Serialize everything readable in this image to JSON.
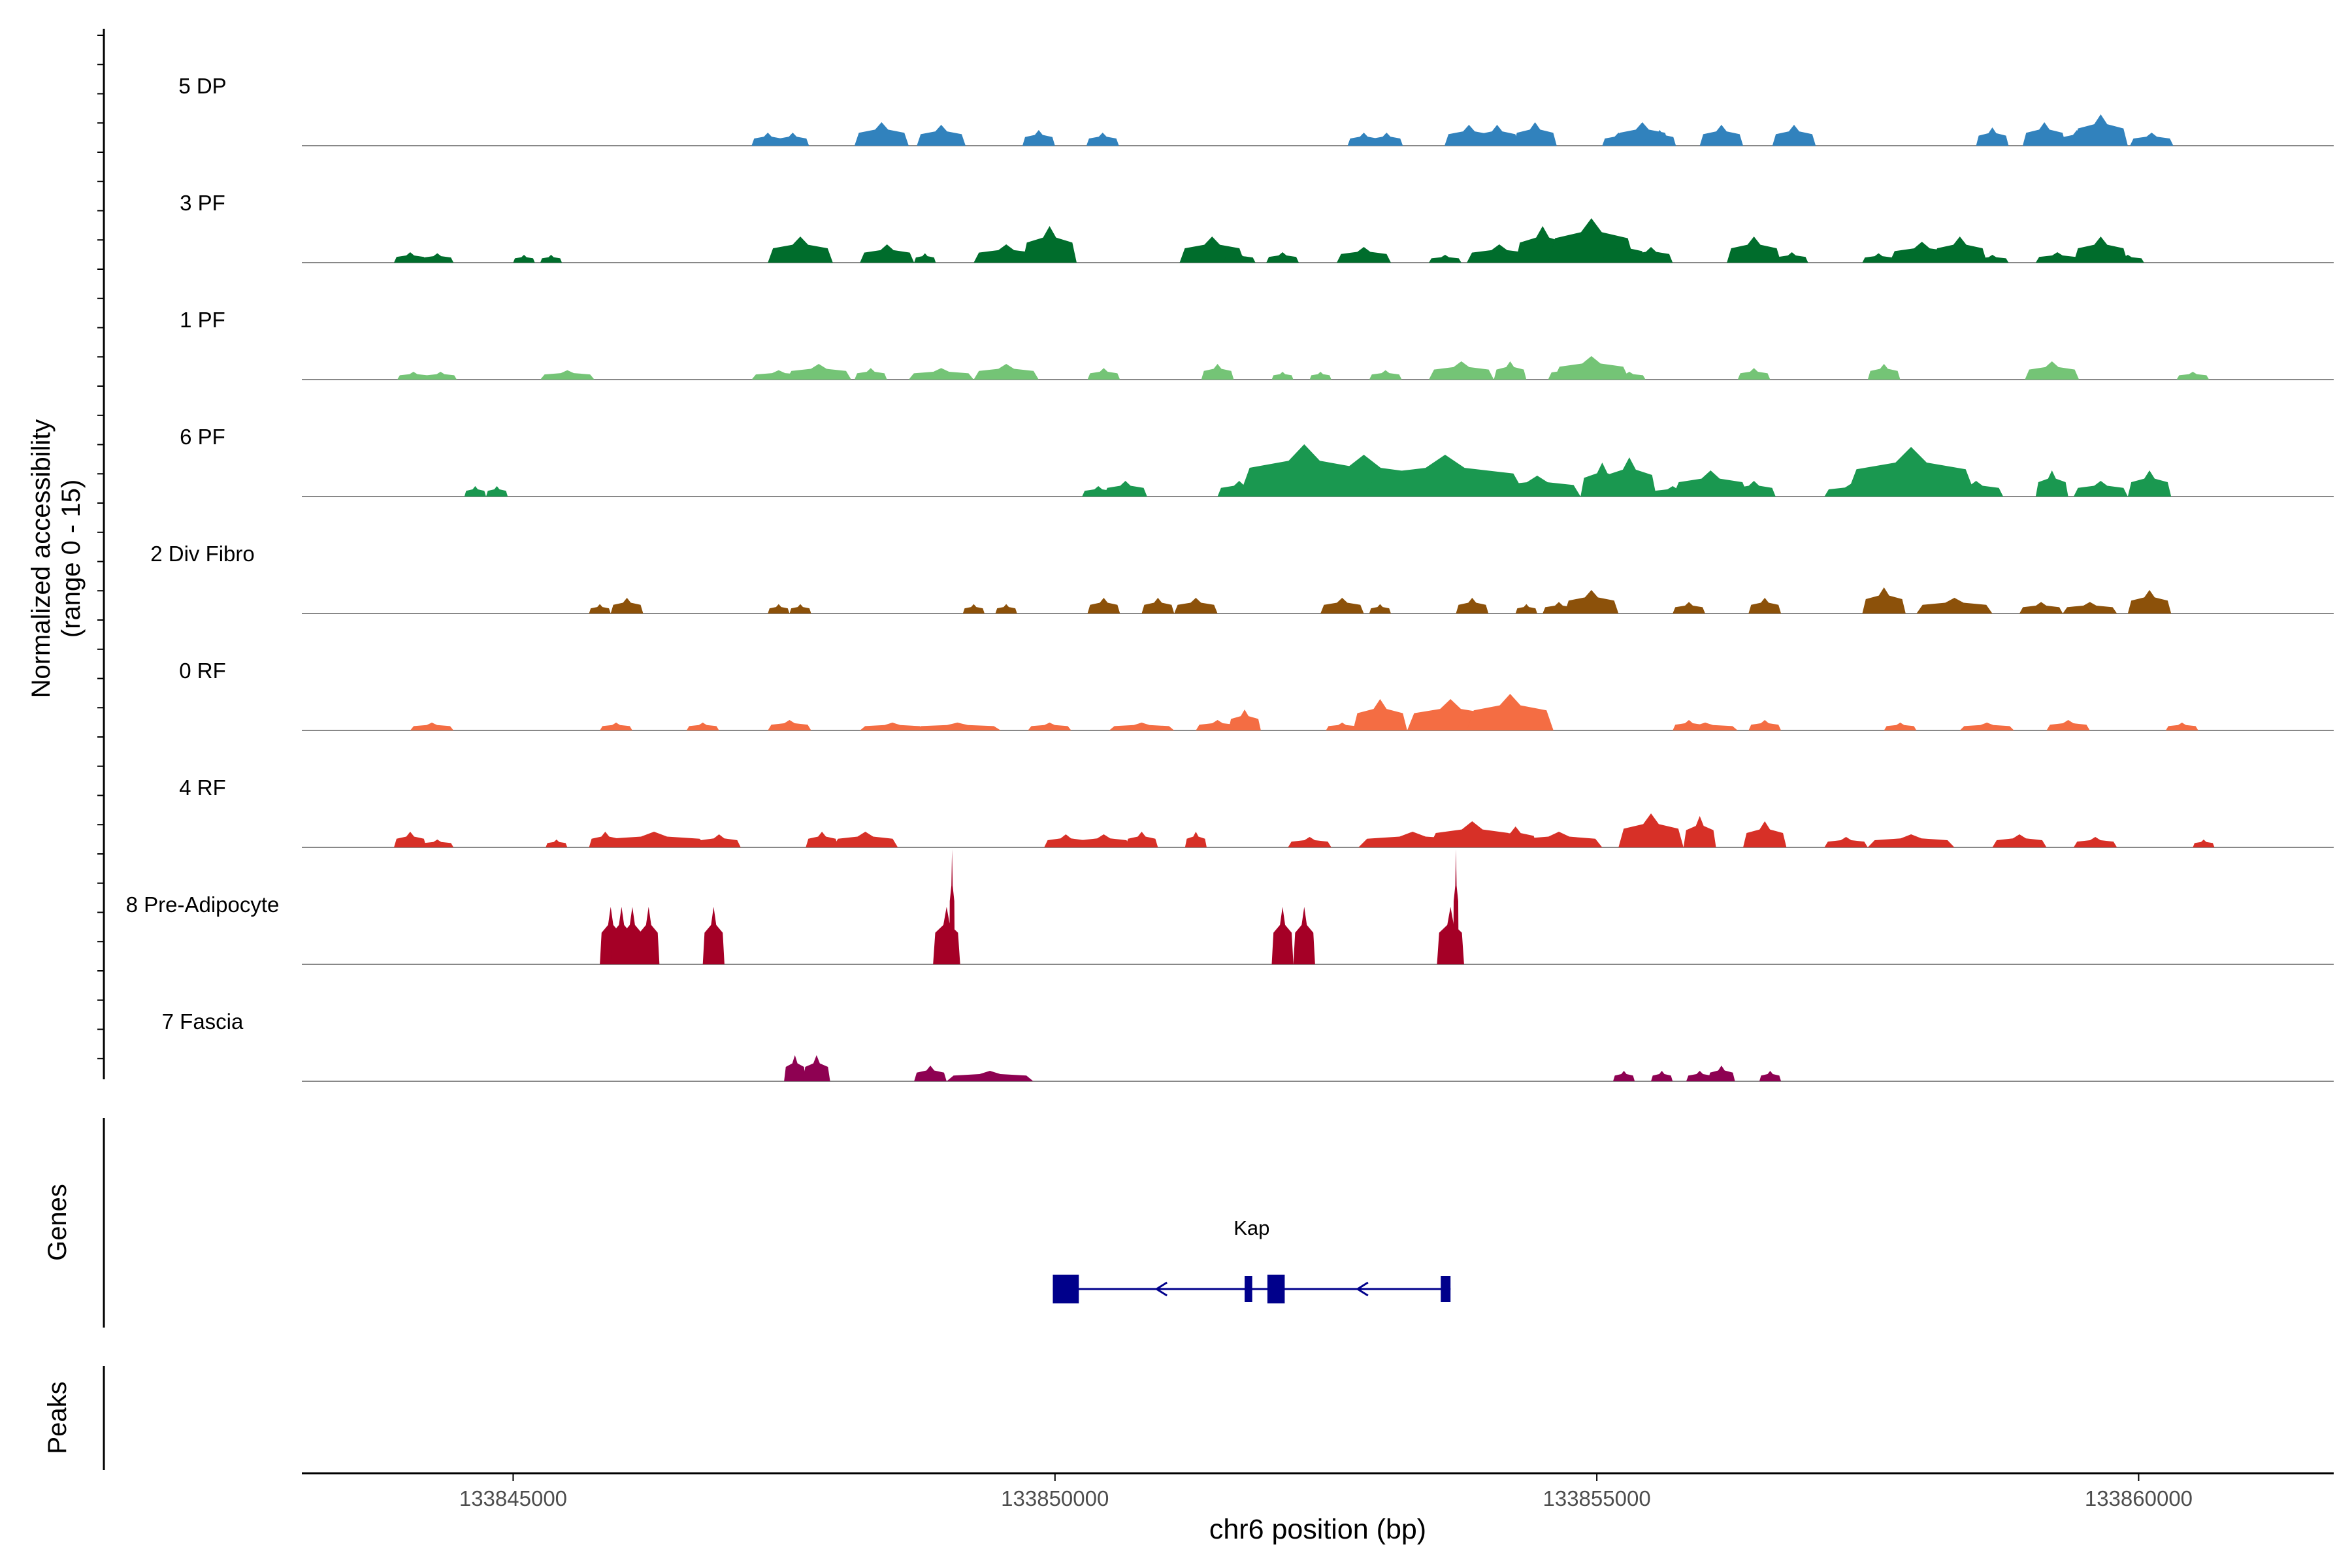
{
  "chart_data": {
    "type": "area",
    "subtype": "coverage-track",
    "x_axis": {
      "label": "chr6 position (bp)",
      "range": [
        133843050,
        133861800
      ],
      "ticks": [
        133845000,
        133850000,
        133855000,
        133860000
      ],
      "tick_labels": [
        "133845000",
        "133850000",
        "133855000",
        "133860000"
      ]
    },
    "y_axis": {
      "label_line1": "Normalized accessibility",
      "label_line2": "(range 0 - 15)",
      "range": [
        0,
        15
      ]
    },
    "series": [
      {
        "name": "5 DP",
        "color": "#3182BD",
        "peaks": [
          [
            133847350,
            0.3,
            2.5
          ],
          [
            133847580,
            0.3,
            2.5
          ],
          [
            133848400,
            0.5,
            4.5
          ],
          [
            133848950,
            0.45,
            4
          ],
          [
            133849850,
            0.3,
            3
          ],
          [
            133850440,
            0.3,
            2.5
          ],
          [
            133852850,
            0.3,
            2.5
          ],
          [
            133853060,
            0.3,
            2.5
          ],
          [
            133853820,
            0.45,
            4
          ],
          [
            133854080,
            0.4,
            4
          ],
          [
            133854430,
            0.4,
            4.5
          ],
          [
            133855200,
            0.3,
            2.5
          ],
          [
            133855420,
            0.5,
            4.5
          ],
          [
            133855580,
            0.3,
            3
          ],
          [
            133856150,
            0.4,
            4
          ],
          [
            133856820,
            0.4,
            4
          ],
          [
            133858650,
            0.3,
            3.5
          ],
          [
            133859130,
            0.4,
            4.5
          ],
          [
            133859430,
            0.3,
            3
          ],
          [
            133859650,
            0.5,
            6
          ],
          [
            133860120,
            0.4,
            2.5
          ]
        ]
      },
      {
        "name": "3 PF",
        "color": "#006D2C",
        "peaks": [
          [
            133844050,
            0.3,
            2
          ],
          [
            133844300,
            0.3,
            1.8
          ],
          [
            133845100,
            0.2,
            1.5
          ],
          [
            133845350,
            0.2,
            1.5
          ],
          [
            133847650,
            0.6,
            5
          ],
          [
            133848450,
            0.5,
            3.5
          ],
          [
            133848800,
            0.2,
            1.8
          ],
          [
            133849550,
            0.6,
            3.5
          ],
          [
            133849950,
            0.5,
            7
          ],
          [
            133851450,
            0.6,
            5
          ],
          [
            133851700,
            0.3,
            1.8
          ],
          [
            133852100,
            0.3,
            2
          ],
          [
            133852850,
            0.5,
            3
          ],
          [
            133853600,
            0.3,
            1.5
          ],
          [
            133854100,
            0.6,
            3.5
          ],
          [
            133854500,
            0.5,
            7
          ],
          [
            133854950,
            0.8,
            8.5
          ],
          [
            133855250,
            0.4,
            4
          ],
          [
            133855500,
            0.4,
            3
          ],
          [
            133856450,
            0.5,
            5
          ],
          [
            133856800,
            0.3,
            2
          ],
          [
            133857600,
            0.3,
            1.8
          ],
          [
            133858000,
            0.6,
            4
          ],
          [
            133858350,
            0.5,
            5
          ],
          [
            133858650,
            0.3,
            1.5
          ],
          [
            133859250,
            0.4,
            2
          ],
          [
            133859650,
            0.5,
            5
          ],
          [
            133859900,
            0.3,
            1.5
          ]
        ]
      },
      {
        "name": "1 PF",
        "color": "#74C476",
        "peaks": [
          [
            133844080,
            0.3,
            1.5
          ],
          [
            133844330,
            0.3,
            1.5
          ],
          [
            133845500,
            0.5,
            1.8
          ],
          [
            133847450,
            0.5,
            1.8
          ],
          [
            133847820,
            0.6,
            3
          ],
          [
            133848300,
            0.3,
            2.2
          ],
          [
            133848950,
            0.6,
            2.2
          ],
          [
            133849550,
            0.6,
            3
          ],
          [
            133850450,
            0.3,
            2.2
          ],
          [
            133851500,
            0.3,
            3
          ],
          [
            133852100,
            0.2,
            1.5
          ],
          [
            133852450,
            0.2,
            1.5
          ],
          [
            133853050,
            0.3,
            1.8
          ],
          [
            133853750,
            0.6,
            3.5
          ],
          [
            133854200,
            0.3,
            3.5
          ],
          [
            133854750,
            0.4,
            2.5
          ],
          [
            133854950,
            0.7,
            4.5
          ],
          [
            133855300,
            0.3,
            1.5
          ],
          [
            133856450,
            0.3,
            2.2
          ],
          [
            133857650,
            0.3,
            3
          ],
          [
            133859200,
            0.5,
            3.5
          ],
          [
            133860500,
            0.3,
            1.5
          ]
        ]
      },
      {
        "name": "6 PF",
        "color": "#1A9850",
        "peaks": [
          [
            133844650,
            0.2,
            2
          ],
          [
            133844850,
            0.2,
            2
          ],
          [
            133850400,
            0.3,
            2
          ],
          [
            133850650,
            0.4,
            3
          ],
          [
            133851700,
            0.4,
            3
          ],
          [
            133852000,
            0.4,
            4
          ],
          [
            133852300,
            1.2,
            10
          ],
          [
            133852850,
            1.3,
            8
          ],
          [
            133853600,
            1.5,
            8
          ],
          [
            133854100,
            0.3,
            2
          ],
          [
            133854450,
            0.8,
            4
          ],
          [
            133855050,
            0.4,
            6.5
          ],
          [
            133855300,
            0.5,
            7.5
          ],
          [
            133855700,
            0.4,
            2
          ],
          [
            133856050,
            0.7,
            5
          ],
          [
            133856450,
            0.4,
            3
          ],
          [
            133857350,
            0.5,
            2.5
          ],
          [
            133857900,
            1.2,
            9.5
          ],
          [
            133858500,
            0.5,
            3
          ],
          [
            133859200,
            0.3,
            5
          ],
          [
            133859650,
            0.5,
            3
          ],
          [
            133860100,
            0.4,
            5
          ]
        ]
      },
      {
        "name": "2 Div Fibro",
        "color": "#8C510A",
        "peaks": [
          [
            133845800,
            0.2,
            1.8
          ],
          [
            133846050,
            0.3,
            3
          ],
          [
            133847450,
            0.2,
            1.8
          ],
          [
            133847650,
            0.2,
            1.8
          ],
          [
            133849250,
            0.2,
            1.8
          ],
          [
            133849550,
            0.2,
            1.8
          ],
          [
            133850450,
            0.3,
            3
          ],
          [
            133850950,
            0.3,
            3
          ],
          [
            133851300,
            0.4,
            3
          ],
          [
            133852650,
            0.4,
            3
          ],
          [
            133853000,
            0.2,
            1.8
          ],
          [
            133853850,
            0.3,
            3
          ],
          [
            133854350,
            0.2,
            1.8
          ],
          [
            133854650,
            0.3,
            2.2
          ],
          [
            133854950,
            0.5,
            4.5
          ],
          [
            133855850,
            0.3,
            2.2
          ],
          [
            133856550,
            0.3,
            3
          ],
          [
            133857650,
            0.4,
            5
          ],
          [
            133858300,
            0.7,
            3
          ],
          [
            133859100,
            0.4,
            2.2
          ],
          [
            133859550,
            0.5,
            2.2
          ],
          [
            133860100,
            0.4,
            4.5
          ]
        ]
      },
      {
        "name": "0 RF",
        "color": "#F46D43",
        "peaks": [
          [
            133844250,
            0.4,
            1.5
          ],
          [
            133845950,
            0.3,
            1.5
          ],
          [
            133846750,
            0.3,
            1.5
          ],
          [
            133847550,
            0.4,
            2
          ],
          [
            133848500,
            0.6,
            1.5
          ],
          [
            133849100,
            0.8,
            1.5
          ],
          [
            133849950,
            0.4,
            1.5
          ],
          [
            133850800,
            0.6,
            1.5
          ],
          [
            133851500,
            0.4,
            2
          ],
          [
            133851750,
            0.3,
            4
          ],
          [
            133852650,
            0.3,
            1.5
          ],
          [
            133853000,
            0.5,
            6
          ],
          [
            133853650,
            0.8,
            6
          ],
          [
            133854200,
            0.8,
            7
          ],
          [
            133855850,
            0.3,
            2
          ],
          [
            133856000,
            0.6,
            1.5
          ],
          [
            133856550,
            0.3,
            2
          ],
          [
            133857800,
            0.3,
            1.5
          ],
          [
            133858600,
            0.5,
            1.5
          ],
          [
            133859350,
            0.4,
            2
          ],
          [
            133860400,
            0.3,
            1.5
          ]
        ]
      },
      {
        "name": "4 RF",
        "color": "#D73027",
        "peaks": [
          [
            133844050,
            0.3,
            3
          ],
          [
            133844300,
            0.3,
            1.5
          ],
          [
            133845400,
            0.2,
            1.5
          ],
          [
            133845850,
            0.3,
            3
          ],
          [
            133846300,
            1,
            3
          ],
          [
            133846900,
            0.4,
            2.5
          ],
          [
            133847850,
            0.3,
            3
          ],
          [
            133848250,
            0.6,
            3
          ],
          [
            133850100,
            0.4,
            2.5
          ],
          [
            133850450,
            0.5,
            2.5
          ],
          [
            133850800,
            0.3,
            3
          ],
          [
            133851300,
            0.2,
            3
          ],
          [
            133852350,
            0.4,
            2
          ],
          [
            133853300,
            1,
            3
          ],
          [
            133853850,
            0.8,
            5
          ],
          [
            133854250,
            0.4,
            4
          ],
          [
            133854650,
            0.8,
            3
          ],
          [
            133855500,
            0.6,
            6.5
          ],
          [
            133855950,
            0.3,
            6
          ],
          [
            133856550,
            0.4,
            5
          ],
          [
            133857300,
            0.4,
            2
          ],
          [
            133857900,
            0.8,
            2.5
          ],
          [
            133858900,
            0.5,
            2.5
          ],
          [
            133859600,
            0.4,
            2
          ],
          [
            133860600,
            0.2,
            1.5
          ]
        ]
      },
      {
        "name": "8 Pre-Adipocyte",
        "color": "#A50026",
        "peaks": [
          [
            133845900,
            0.2,
            11
          ],
          [
            133846000,
            0.2,
            11
          ],
          [
            133846100,
            0.2,
            11
          ],
          [
            133846250,
            0.2,
            11
          ],
          [
            133846850,
            0.2,
            11
          ],
          [
            133849000,
            0.25,
            11
          ],
          [
            133849050,
            0.05,
            22
          ],
          [
            133852100,
            0.2,
            11
          ],
          [
            133852300,
            0.2,
            11
          ],
          [
            133853650,
            0.25,
            11
          ],
          [
            133853700,
            0.05,
            22
          ]
        ]
      },
      {
        "name": "7 Fascia",
        "color": "#8E0152",
        "peaks": [
          [
            133847600,
            0.2,
            5
          ],
          [
            133847800,
            0.25,
            5
          ],
          [
            133848850,
            0.3,
            3
          ],
          [
            133849400,
            0.8,
            2
          ],
          [
            133855250,
            0.2,
            2
          ],
          [
            133855600,
            0.2,
            2
          ],
          [
            133855950,
            0.25,
            2
          ],
          [
            133856150,
            0.25,
            3
          ],
          [
            133856600,
            0.2,
            2
          ]
        ]
      }
    ],
    "genes": [
      {
        "name": "Kap",
        "strand": "-",
        "start": 133849980,
        "end": 133853650,
        "exons": [
          [
            133849980,
            133850220
          ],
          [
            133851750,
            133851820
          ],
          [
            133851960,
            133852120
          ],
          [
            133853560,
            133853650
          ]
        ]
      }
    ],
    "peaks_track": {
      "label": "Peaks",
      "regions": []
    },
    "panel_labels": {
      "genes": "Genes",
      "peaks": "Peaks"
    },
    "background": "#ffffff",
    "axis_color": "#000000",
    "baseline_color": "#888888",
    "gene_color": "#00008B"
  }
}
